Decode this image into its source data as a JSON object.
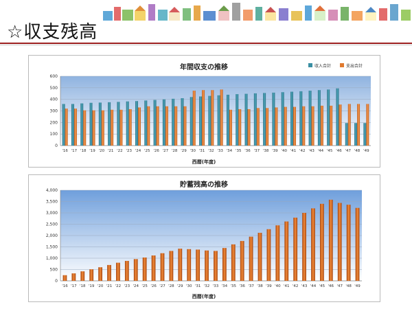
{
  "page": {
    "title": "☆収支残高"
  },
  "colors": {
    "income": "#3a8fa3",
    "expense": "#e07a2e",
    "savings": "#d2691e",
    "title_rule": "#9c1e1e"
  },
  "chart_data": [
    {
      "type": "bar",
      "title": "年間収支の推移",
      "xlabel": "西暦(年度)",
      "ylabel": "",
      "ylim": [
        0,
        600
      ],
      "yticks": [
        "0",
        "100",
        "200",
        "300",
        "400",
        "500",
        "600"
      ],
      "legend": "top-right",
      "grid": true,
      "categories": [
        "'16",
        "'17",
        "'18",
        "'19",
        "'20",
        "'21",
        "'22",
        "'23",
        "'24",
        "'25",
        "'26",
        "'27",
        "'28",
        "'29",
        "'30",
        "'31",
        "'32",
        "'33",
        "'34",
        "'35",
        "'36",
        "'37",
        "'38",
        "'39",
        "'40",
        "'41",
        "'42",
        "'43",
        "'44",
        "'45",
        "'46",
        "'47",
        "'48",
        "'49"
      ],
      "series": [
        {
          "name": "収入合計",
          "values": [
            360,
            360,
            365,
            370,
            372,
            375,
            378,
            382,
            385,
            390,
            395,
            400,
            405,
            410,
            420,
            425,
            430,
            435,
            440,
            445,
            448,
            452,
            455,
            458,
            462,
            466,
            470,
            475,
            480,
            485,
            495,
            195,
            195,
            195
          ]
        },
        {
          "name": "支出合計",
          "values": [
            320,
            320,
            305,
            305,
            305,
            310,
            310,
            315,
            330,
            340,
            340,
            340,
            340,
            340,
            475,
            480,
            480,
            485,
            310,
            315,
            315,
            325,
            325,
            330,
            335,
            335,
            340,
            340,
            345,
            345,
            355,
            360,
            360,
            360
          ]
        }
      ]
    },
    {
      "type": "bar",
      "title": "貯蓄残高の推移",
      "xlabel": "西暦(年度)",
      "ylabel": "",
      "ylim": [
        0,
        4000
      ],
      "yticks": [
        "0",
        "500",
        "1,000",
        "1,500",
        "2,000",
        "2,500",
        "3,000",
        "3,500",
        "4,000"
      ],
      "grid": true,
      "categories": [
        "'16",
        "'17",
        "'18",
        "'19",
        "'20",
        "'21",
        "'22",
        "'23",
        "'24",
        "'25",
        "'26",
        "'27",
        "'28",
        "'29",
        "'30",
        "'31",
        "'32",
        "'33",
        "'34",
        "'35",
        "'36",
        "'37",
        "'38",
        "'39",
        "'40",
        "'41",
        "'42",
        "'43",
        "'44",
        "'45",
        "'46",
        "'47",
        "'48",
        "'49"
      ],
      "series": [
        {
          "values": [
            250,
            330,
            420,
            510,
            600,
            700,
            800,
            880,
            960,
            1030,
            1120,
            1220,
            1320,
            1420,
            1400,
            1380,
            1340,
            1320,
            1450,
            1610,
            1760,
            1950,
            2120,
            2280,
            2450,
            2620,
            2790,
            3000,
            3200,
            3400,
            3580,
            3440,
            3360,
            3220
          ]
        }
      ]
    }
  ]
}
